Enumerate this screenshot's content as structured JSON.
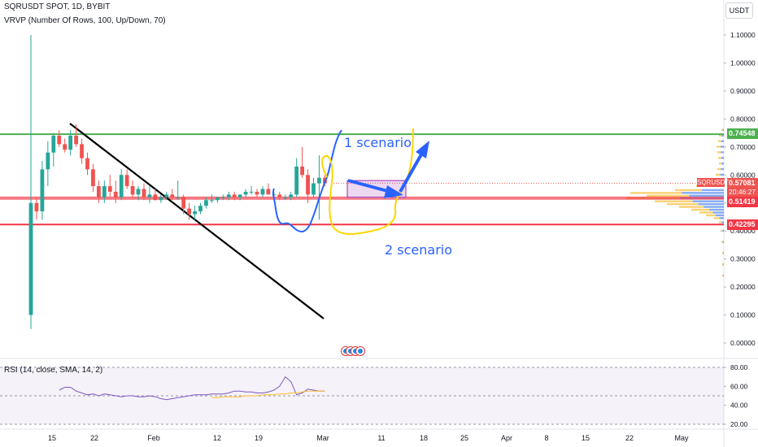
{
  "legend": {
    "main": "SQRUSDT SPOT, 1D, BYBIT",
    "vrvp": "VRVP (Number Of Rows, 100, Up/Down, 70)",
    "rsi": "RSI (14, close, SMA, 14, 2)"
  },
  "currency_button": "USDT",
  "colors": {
    "up": "#26a69a",
    "down": "#ef5350",
    "green_level": "#4caf50",
    "red_level": "#f23645",
    "blue_drawing": "#2962ff",
    "yellow_drawing": "#ffd600",
    "rsi_line": "#7e57c2",
    "rsi_ma": "#fbc02d"
  },
  "price_axis": {
    "ticks": [
      "1.10000",
      "1.00000",
      "0.90000",
      "0.80000",
      "0.70000",
      "0.60000",
      "0.50000",
      "0.40000",
      "0.30000",
      "0.20000",
      "0.10000",
      "0.00000"
    ]
  },
  "price_labels": {
    "green_level": "0.74548",
    "current": "0.57081",
    "symbol_tag": "SQRUSDT",
    "countdown": "20:46:27",
    "red_level_1": "0.51419",
    "red_level_2": "0.42295"
  },
  "rsi_axis": {
    "ticks": [
      "80.00",
      "60.00",
      "40.00",
      "20.00"
    ]
  },
  "time_axis": {
    "ticks": [
      "15",
      "22",
      "Feb",
      "12",
      "19",
      "Mar",
      "11",
      "18",
      "25",
      "Apr",
      "8",
      "15",
      "22",
      "May"
    ]
  },
  "annotations": {
    "scenario_1": "1 scenario",
    "scenario_2": "2 scenario"
  },
  "chart_data": [
    {
      "type": "candlestick",
      "title": "SQRUSDT SPOT, 1D, BYBIT",
      "ylim": [
        -0.03,
        1.14
      ],
      "levels": [
        0.74548,
        0.52,
        0.51419,
        0.42295
      ],
      "candles": [
        [
          0.1,
          1.1,
          0.05,
          0.5
        ],
        [
          0.5,
          0.52,
          0.44,
          0.47
        ],
        [
          0.47,
          0.65,
          0.44,
          0.62
        ],
        [
          0.62,
          0.72,
          0.56,
          0.68
        ],
        [
          0.68,
          0.75,
          0.63,
          0.74
        ],
        [
          0.74,
          0.76,
          0.7,
          0.71
        ],
        [
          0.71,
          0.73,
          0.68,
          0.69
        ],
        [
          0.69,
          0.76,
          0.67,
          0.74
        ],
        [
          0.74,
          0.78,
          0.7,
          0.71
        ],
        [
          0.71,
          0.73,
          0.64,
          0.66
        ],
        [
          0.66,
          0.68,
          0.6,
          0.62
        ],
        [
          0.62,
          0.64,
          0.54,
          0.56
        ],
        [
          0.56,
          0.58,
          0.5,
          0.52
        ],
        [
          0.52,
          0.58,
          0.5,
          0.56
        ],
        [
          0.56,
          0.6,
          0.52,
          0.54
        ],
        [
          0.54,
          0.58,
          0.5,
          0.52
        ],
        [
          0.52,
          0.62,
          0.51,
          0.6
        ],
        [
          0.6,
          0.62,
          0.55,
          0.56
        ],
        [
          0.56,
          0.58,
          0.52,
          0.53
        ],
        [
          0.53,
          0.56,
          0.51,
          0.55
        ],
        [
          0.55,
          0.57,
          0.51,
          0.52
        ],
        [
          0.52,
          0.56,
          0.5,
          0.53
        ],
        [
          0.53,
          0.55,
          0.51,
          0.51
        ],
        [
          0.51,
          0.53,
          0.5,
          0.52
        ],
        [
          0.52,
          0.54,
          0.51,
          0.53
        ],
        [
          0.53,
          0.55,
          0.51,
          0.52
        ],
        [
          0.52,
          0.58,
          0.51,
          0.52
        ],
        [
          0.52,
          0.53,
          0.46,
          0.48
        ],
        [
          0.48,
          0.5,
          0.44,
          0.46
        ],
        [
          0.46,
          0.49,
          0.44,
          0.47
        ],
        [
          0.47,
          0.5,
          0.46,
          0.49
        ],
        [
          0.49,
          0.52,
          0.48,
          0.51
        ],
        [
          0.51,
          0.53,
          0.5,
          0.51
        ],
        [
          0.51,
          0.52,
          0.5,
          0.52
        ],
        [
          0.52,
          0.53,
          0.51,
          0.52
        ],
        [
          0.52,
          0.54,
          0.51,
          0.53
        ],
        [
          0.53,
          0.54,
          0.51,
          0.52
        ],
        [
          0.52,
          0.53,
          0.51,
          0.53
        ],
        [
          0.53,
          0.55,
          0.52,
          0.54
        ],
        [
          0.54,
          0.56,
          0.53,
          0.54
        ],
        [
          0.54,
          0.55,
          0.52,
          0.53
        ],
        [
          0.53,
          0.56,
          0.52,
          0.55
        ],
        [
          0.55,
          0.57,
          0.53,
          0.53
        ],
        [
          0.53,
          0.54,
          0.52,
          0.53
        ],
        [
          0.53,
          0.54,
          0.51,
          0.52
        ],
        [
          0.52,
          0.53,
          0.51,
          0.52
        ],
        [
          0.52,
          0.54,
          0.51,
          0.53
        ],
        [
          0.53,
          0.66,
          0.52,
          0.63
        ],
        [
          0.63,
          0.7,
          0.59,
          0.6
        ],
        [
          0.6,
          0.62,
          0.5,
          0.53
        ],
        [
          0.53,
          0.59,
          0.52,
          0.57
        ],
        [
          0.57,
          0.67,
          0.44,
          0.59
        ],
        [
          0.59,
          0.6,
          0.56,
          0.57
        ]
      ]
    },
    {
      "type": "line",
      "title": "RSI (14, close, SMA, 14, 2)",
      "ylim": [
        13,
        83
      ],
      "series": [
        {
          "values": [
            56,
            59,
            59,
            55,
            53,
            51,
            52,
            50,
            52,
            51,
            50,
            49,
            50,
            50,
            49,
            49,
            50,
            49,
            47,
            46,
            47,
            48,
            49,
            50,
            51,
            51,
            51,
            52,
            52,
            52,
            53,
            55,
            55,
            54,
            54,
            53,
            53,
            54,
            56,
            60,
            70,
            65,
            51,
            53,
            57,
            56,
            55,
            55
          ]
        },
        {
          "values": [
            48,
            48,
            49,
            49,
            49,
            49,
            50,
            50,
            50,
            51,
            51,
            51,
            52,
            52,
            53,
            53,
            54,
            55,
            55,
            55,
            55
          ]
        }
      ]
    }
  ]
}
